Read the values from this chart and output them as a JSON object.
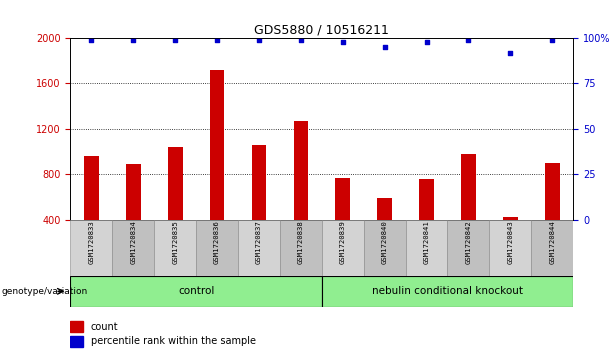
{
  "title": "GDS5880 / 10516211",
  "samples": [
    "GSM1720833",
    "GSM1720834",
    "GSM1720835",
    "GSM1720836",
    "GSM1720837",
    "GSM1720838",
    "GSM1720839",
    "GSM1720840",
    "GSM1720841",
    "GSM1720842",
    "GSM1720843",
    "GSM1720844"
  ],
  "counts": [
    960,
    890,
    1040,
    1720,
    1060,
    1270,
    770,
    590,
    760,
    980,
    420,
    900
  ],
  "percentiles": [
    99,
    99,
    99,
    99,
    99,
    99,
    98,
    95,
    98,
    99,
    92,
    99
  ],
  "ylim_left": [
    400,
    2000
  ],
  "ylim_right": [
    0,
    100
  ],
  "yticks_left": [
    400,
    800,
    1200,
    1600,
    2000
  ],
  "yticks_right": [
    0,
    25,
    50,
    75,
    100
  ],
  "bar_color": "#cc0000",
  "dot_color": "#0000cc",
  "bg_color": "#ffffff",
  "cell_color_odd": "#d3d3d3",
  "cell_color_even": "#c0c0c0",
  "control_color": "#90EE90",
  "knockout_color": "#90EE90",
  "control_label": "control",
  "knockout_label": "nebulin conditional knockout",
  "control_samples": 6,
  "knockout_samples": 6,
  "xlabel_left": "genotype/variation",
  "legend_count": "count",
  "legend_pct": "percentile rank within the sample",
  "right_ytick_labels": [
    "0",
    "25",
    "50",
    "75",
    "100%"
  ],
  "bar_width": 0.35
}
